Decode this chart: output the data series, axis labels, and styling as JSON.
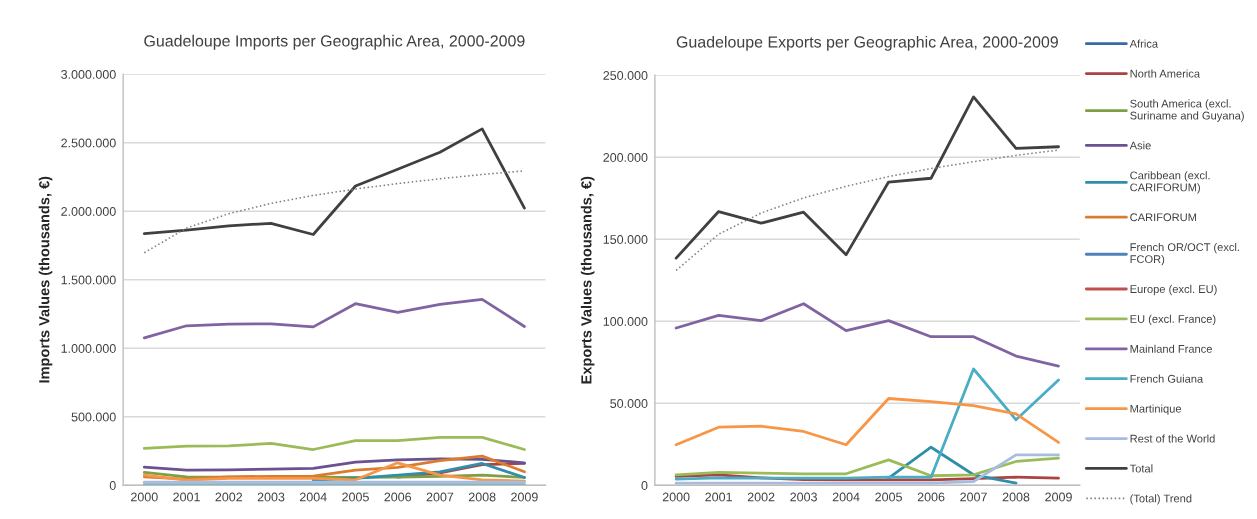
{
  "chart_data": [
    {
      "type": "line",
      "title": "Guadeloupe Imports per Geographic Area, 2000-2009",
      "ylabel": "Imports Values (thousands, €)",
      "categories": [
        "2000",
        "2001",
        "2002",
        "2003",
        "2004",
        "2005",
        "2006",
        "2007",
        "2008",
        "2009"
      ],
      "ylim": [
        0,
        3000000
      ],
      "yticks": [
        0,
        {
          "value": 500000,
          "label": "500.000"
        },
        {
          "value": 1000000,
          "label": "1.000.000"
        },
        {
          "value": 1500000,
          "label": "1.500.000"
        },
        {
          "value": 2000000,
          "label": "2.000.000"
        },
        {
          "value": 2500000,
          "label": "2.500.000"
        },
        {
          "value": 3000000,
          "label": "3.000.000"
        }
      ],
      "grid": "y",
      "legend": "right",
      "series": [
        {
          "name": "Africa",
          "color": "#3a6aa5",
          "values": [
            null,
            null,
            null,
            null,
            null,
            null,
            null,
            null,
            null,
            null
          ]
        },
        {
          "name": "North America",
          "color": "#a94441",
          "values": [
            null,
            null,
            null,
            null,
            null,
            null,
            60000,
            90000,
            150000,
            160000
          ]
        },
        {
          "name": "South America (excl.\nSuriname and Guyana)",
          "color": "#7f9f45",
          "values": [
            94000,
            62000,
            60000,
            60000,
            60000,
            57000,
            60000,
            65000,
            74000,
            57000
          ]
        },
        {
          "name": "Asie",
          "color": "#6a5190",
          "values": [
            132000,
            111000,
            112000,
            118000,
            123000,
            169000,
            186000,
            193000,
            189000,
            164000
          ]
        },
        {
          "name": "Caribbean (excl.\nCARIFORUM)",
          "color": "#2f8fab",
          "values": [
            null,
            null,
            null,
            null,
            38000,
            50000,
            74000,
            98000,
            159000,
            57000
          ]
        },
        {
          "name": "CARIFORUM",
          "color": "#d97c2e",
          "values": [
            62000,
            45000,
            62000,
            65000,
            67000,
            111000,
            130000,
            180000,
            213000,
            99000
          ]
        },
        {
          "name": "French OR/OCT (excl.\nFCOR)",
          "color": "#4f81bd",
          "values": [
            null,
            null,
            null,
            null,
            null,
            null,
            null,
            null,
            null,
            null
          ]
        },
        {
          "name": "Europe (excl. EU)",
          "color": "#c0504d",
          "values": [
            null,
            null,
            null,
            null,
            null,
            null,
            null,
            null,
            null,
            null
          ]
        },
        {
          "name": "EU (excl. France)",
          "color": "#9bbb59",
          "values": [
            269000,
            286000,
            288000,
            305000,
            261000,
            325000,
            325000,
            349000,
            349000,
            261000
          ]
        },
        {
          "name": "Mainland France",
          "color": "#8064a2",
          "values": [
            1076000,
            1164000,
            1176000,
            1178000,
            1156000,
            1325000,
            1262000,
            1320000,
            1357000,
            1159000
          ]
        },
        {
          "name": "French Guiana",
          "color": "#4bacc6",
          "values": [
            4000,
            4000,
            4000,
            4000,
            4000,
            4000,
            4000,
            4000,
            4000,
            4000
          ]
        },
        {
          "name": "Martinique",
          "color": "#f79646",
          "values": [
            74000,
            38000,
            50000,
            50000,
            50000,
            40000,
            164000,
            74000,
            40000,
            30000
          ]
        },
        {
          "name": "Rest of the World",
          "color": "#a7bde0",
          "values": [
            22000,
            22000,
            22000,
            22000,
            22000,
            22000,
            22000,
            22000,
            22000,
            22000
          ]
        },
        {
          "name": "Total",
          "color": "#404040",
          "values": [
            1837000,
            1862000,
            1893000,
            1912000,
            1830000,
            2184000,
            2307000,
            2431000,
            2601000,
            2023000
          ]
        },
        {
          "name": "(Total) Trend",
          "type": "line",
          "line_style": "dotted",
          "color": "#7f7f7f",
          "values": [
            1697000,
            1877000,
            1982000,
            2057000,
            2115000,
            2162000,
            2202000,
            2237000,
            2268000,
            2295000
          ]
        }
      ]
    },
    {
      "type": "line",
      "title": "Guadeloupe Exports per Geographic Area, 2000-2009",
      "ylabel": "Exports Values (thousands, €)",
      "categories": [
        "2000",
        "2001",
        "2002",
        "2003",
        "2004",
        "2005",
        "2006",
        "2007",
        "2008",
        "2009"
      ],
      "ylim": [
        0,
        250000
      ],
      "yticks": [
        0,
        {
          "value": 50000,
          "label": "50.000"
        },
        {
          "value": 100000,
          "label": "100.000"
        },
        {
          "value": 150000,
          "label": "150.000"
        },
        {
          "value": 200000,
          "label": "200.000"
        },
        {
          "value": 250000,
          "label": "250.000"
        }
      ],
      "grid": "y",
      "legend": "right",
      "series": [
        {
          "name": "North America",
          "color": "#a94441",
          "values": [
            5400,
            6400,
            4500,
            3500,
            3300,
            3300,
            3300,
            4000,
            4900,
            4300
          ]
        },
        {
          "name": "South America (excl.\nSuriname and Guyana)",
          "color": "#7f9f45",
          "values": [
            null,
            null,
            null,
            null,
            null,
            null,
            null,
            null,
            null,
            null
          ]
        },
        {
          "name": "Asie",
          "color": "#6a5190",
          "values": [
            null,
            null,
            null,
            null,
            null,
            null,
            null,
            null,
            null,
            null
          ]
        },
        {
          "name": "Caribbean (excl.\nCARIFORUM)",
          "color": "#2f8fab",
          "values": [
            null,
            null,
            null,
            null,
            null,
            4300,
            23200,
            6400,
            1300,
            null
          ]
        },
        {
          "name": "CARIFORUM",
          "color": "#d97c2e",
          "values": [
            null,
            null,
            null,
            null,
            null,
            null,
            null,
            null,
            null,
            null
          ]
        },
        {
          "name": "EU (excl. France)",
          "color": "#9bbb59",
          "values": [
            6400,
            7800,
            7400,
            7000,
            7000,
            15500,
            5800,
            6400,
            14500,
            16500
          ]
        },
        {
          "name": "Mainland France",
          "color": "#8064a2",
          "values": [
            95900,
            103600,
            100400,
            110700,
            94300,
            100400,
            90600,
            90600,
            78800,
            72700
          ]
        },
        {
          "name": "French Guiana",
          "color": "#4bacc6",
          "values": [
            3700,
            4500,
            4300,
            4300,
            4300,
            4900,
            4900,
            70900,
            39900,
            64200
          ]
        },
        {
          "name": "Martinique",
          "color": "#f79646",
          "values": [
            24700,
            35400,
            36000,
            32800,
            24700,
            52900,
            51000,
            48600,
            43500,
            26100
          ]
        },
        {
          "name": "Rest of the World",
          "color": "#a7bde0",
          "values": [
            1300,
            1300,
            1300,
            1300,
            1300,
            1300,
            1300,
            2300,
            18500,
            18500
          ]
        },
        {
          "name": "Total",
          "color": "#404040",
          "values": [
            138500,
            166900,
            159800,
            166500,
            140500,
            184900,
            187200,
            236800,
            205400,
            206400
          ]
        },
        {
          "name": "(Total) Trend",
          "type": "line",
          "line_style": "dotted",
          "color": "#7f7f7f",
          "values": [
            131000,
            153100,
            166000,
            175200,
            182300,
            188200,
            193100,
            197300,
            201100,
            204400
          ]
        }
      ]
    }
  ]
}
